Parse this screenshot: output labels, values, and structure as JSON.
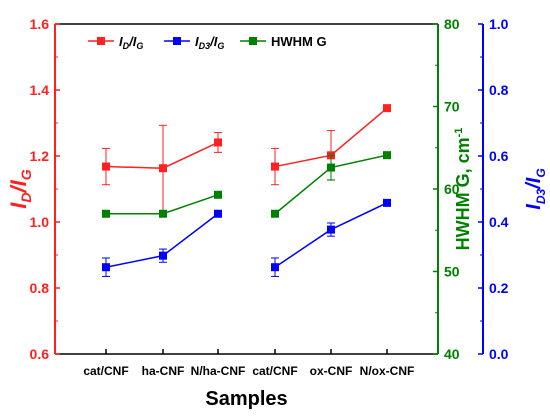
{
  "chart_data": {
    "type": "line",
    "xlabel": "Samples",
    "categories": [
      "cat/CNF",
      "ha-CNF",
      "N/ha-CNF",
      "cat/CNF",
      "ox-CNF",
      "N/ox-CNF"
    ],
    "groups": [
      [
        0,
        1,
        2
      ],
      [
        3,
        4,
        5
      ]
    ],
    "grid": false,
    "legend_position": "top-left",
    "axes": {
      "left": {
        "label_main": "I",
        "label_sub": "D",
        "label_sep": "/",
        "label_main2": "I",
        "label_sub2": "G",
        "ylim": [
          0.6,
          1.6
        ],
        "ticks": [
          "0.6",
          "0.8",
          "1.0",
          "1.2",
          "1.4",
          "1.6"
        ],
        "color": "#ff2020"
      },
      "right1": {
        "label": "HWHM G, cm",
        "label_sup": "-1",
        "ylim": [
          40,
          80
        ],
        "ticks": [
          "40",
          "50",
          "60",
          "70",
          "80"
        ],
        "color": "#008000"
      },
      "right2": {
        "label_main": "I",
        "label_sub": "D3",
        "label_sep": "/",
        "label_main2": "I",
        "label_sub2": "G",
        "ylim": [
          0.0,
          1.0
        ],
        "ticks": [
          "0.0",
          "0.2",
          "0.4",
          "0.6",
          "0.8",
          "1.0"
        ],
        "color": "#0000ff"
      }
    },
    "series": [
      {
        "name_main": "I",
        "name_sub": "D",
        "name_sep": "/",
        "name_main2": "I",
        "name_sub2": "G",
        "axis": "left",
        "color": "#ff2020",
        "values": [
          1.168,
          1.163,
          1.241,
          1.168,
          1.202,
          1.345
        ],
        "errors": [
          0.055,
          0.13,
          0.03,
          0.055,
          0.075,
          0.0
        ]
      },
      {
        "name_main": "I",
        "name_sub": "D3",
        "name_sep": "/",
        "name_main2": "I",
        "name_sub2": "G",
        "axis": "right2",
        "color": "#0000ff",
        "values": [
          0.263,
          0.298,
          0.425,
          0.263,
          0.377,
          0.458
        ],
        "errors": [
          0.028,
          0.02,
          0.0,
          0.028,
          0.02,
          0.0
        ]
      },
      {
        "name": "HWHM G",
        "axis": "right1",
        "color": "#008000",
        "values": [
          57.0,
          57.0,
          59.3,
          57.0,
          62.6,
          64.1
        ],
        "errors": [
          0.0,
          0.0,
          0.0,
          0.0,
          1.5,
          0.0
        ]
      }
    ]
  }
}
